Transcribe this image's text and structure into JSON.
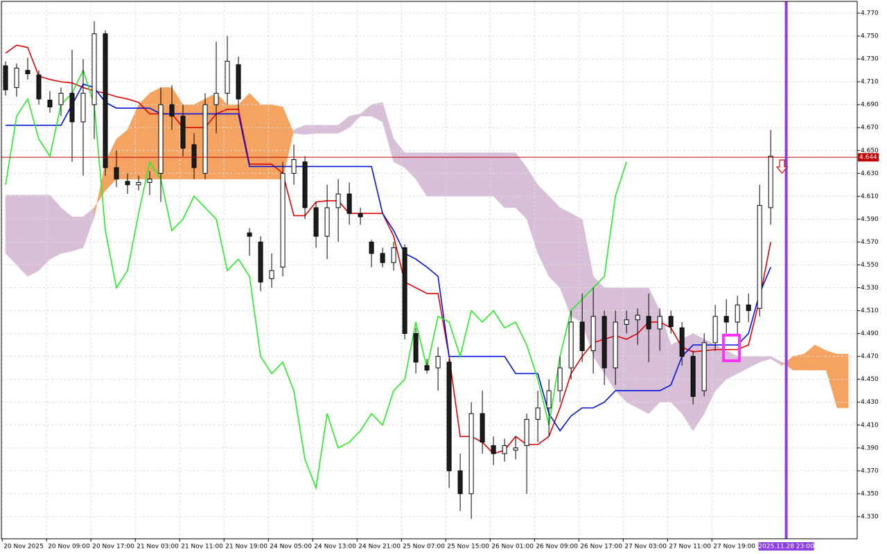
{
  "chart_data": {
    "type": "candlestick",
    "xlim": [
      -0.5,
      76.8
    ],
    "ylim": [
      4.3106,
      4.7803
    ],
    "grid": true,
    "up_color": "#ffffff",
    "down_color": "#1c1c1c",
    "xticks": [
      {
        "value": -0.3,
        "label": "20 Nov 2025"
      },
      {
        "value": 3.7,
        "label": "20 Nov 09:00"
      },
      {
        "value": 7.7,
        "label": "20 Nov 17:00"
      },
      {
        "value": 11.7,
        "label": "21 Nov 03:00"
      },
      {
        "value": 15.7,
        "label": "21 Nov 11:00"
      },
      {
        "value": 19.7,
        "label": "21 Nov 19:00"
      },
      {
        "value": 23.7,
        "label": "24 Nov 05:00"
      },
      {
        "value": 27.7,
        "label": "24 Nov 13:00"
      },
      {
        "value": 31.7,
        "label": "24 Nov 21:00"
      },
      {
        "value": 35.7,
        "label": "25 Nov 07:00"
      },
      {
        "value": 39.7,
        "label": "25 Nov 15:00"
      },
      {
        "value": 43.7,
        "label": "26 Nov 01:00"
      },
      {
        "value": 47.7,
        "label": "26 Nov 09:00"
      },
      {
        "value": 51.7,
        "label": "26 Nov 17:00"
      },
      {
        "value": 55.7,
        "label": "27 Nov 03:00"
      },
      {
        "value": 59.7,
        "label": "27 Nov 11:00"
      },
      {
        "value": 63.7,
        "label": "27 Nov 19:00"
      }
    ],
    "yticks": [
      {
        "value": 4.33,
        "label": "4.330"
      },
      {
        "value": 4.35,
        "label": "4.350"
      },
      {
        "value": 4.37,
        "label": "4.370"
      },
      {
        "value": 4.39,
        "label": "4.390"
      },
      {
        "value": 4.41,
        "label": "4.410"
      },
      {
        "value": 4.43,
        "label": "4.430"
      },
      {
        "value": 4.45,
        "label": "4.450"
      },
      {
        "value": 4.47,
        "label": "4.470"
      },
      {
        "value": 4.49,
        "label": "4.490"
      },
      {
        "value": 4.51,
        "label": "4.510"
      },
      {
        "value": 4.53,
        "label": "4.530"
      },
      {
        "value": 4.55,
        "label": "4.550"
      },
      {
        "value": 4.57,
        "label": "4.570"
      },
      {
        "value": 4.59,
        "label": "4.590"
      },
      {
        "value": 4.61,
        "label": "4.610"
      },
      {
        "value": 4.63,
        "label": "4.630"
      },
      {
        "value": 4.65,
        "label": "4.650"
      },
      {
        "value": 4.67,
        "label": "4.670"
      },
      {
        "value": 4.69,
        "label": "4.690"
      },
      {
        "value": 4.71,
        "label": "4.710"
      },
      {
        "value": 4.73,
        "label": "4.730"
      },
      {
        "value": 4.75,
        "label": "4.750"
      },
      {
        "value": 4.77,
        "label": "4.770"
      }
    ],
    "x": [
      0,
      1,
      2,
      3,
      4,
      5,
      6,
      7,
      8,
      9,
      10,
      11,
      12,
      13,
      14,
      15,
      16,
      17,
      18,
      19,
      20,
      21,
      22,
      23,
      24,
      25,
      26,
      27,
      28,
      29,
      30,
      31,
      32,
      33,
      34,
      35,
      36,
      37,
      38,
      39,
      40,
      41,
      42,
      43,
      44,
      45,
      46,
      47,
      48,
      49,
      50,
      51,
      52,
      53,
      54,
      55,
      56,
      57,
      58,
      59,
      60,
      61,
      62,
      63,
      64,
      65,
      66,
      67,
      68,
      69
    ],
    "open": [
      4.724,
      4.705,
      4.72,
      4.716,
      4.694,
      4.69,
      4.7,
      4.675,
      4.69,
      4.752,
      4.635,
      4.623,
      4.62,
      4.622,
      4.63,
      4.69,
      4.68,
      4.655,
      4.63,
      4.69,
      4.7,
      4.725,
      4.578,
      4.57,
      4.538,
      4.548,
      4.63,
      4.64,
      4.6,
      4.575,
      4.6,
      4.612,
      4.595,
      4.57,
      4.56,
      4.552,
      4.565,
      4.49,
      4.462,
      4.46,
      4.465,
      4.37,
      4.35,
      4.42,
      4.392,
      4.385,
      4.388,
      4.392,
      4.415,
      4.425,
      4.44,
      4.46,
      4.5,
      4.475,
      4.505,
      4.46,
      4.498,
      4.502,
      4.505,
      4.494,
      4.505,
      4.495,
      4.47,
      4.44,
      4.482,
      4.505,
      4.5,
      4.515,
      4.512,
      4.6
    ],
    "high": [
      4.728,
      4.726,
      4.731,
      4.72,
      4.702,
      4.705,
      4.738,
      4.73,
      4.763,
      4.755,
      4.65,
      4.63,
      4.628,
      4.632,
      4.705,
      4.707,
      4.69,
      4.665,
      4.7,
      4.745,
      4.75,
      4.732,
      4.582,
      4.575,
      4.56,
      4.64,
      4.655,
      4.645,
      4.605,
      4.62,
      4.625,
      4.622,
      4.6,
      4.572,
      4.565,
      4.57,
      4.568,
      4.495,
      4.468,
      4.478,
      4.468,
      4.385,
      4.43,
      4.44,
      4.4,
      4.398,
      4.4,
      4.42,
      4.44,
      4.45,
      4.47,
      4.51,
      4.525,
      4.53,
      4.51,
      4.51,
      4.51,
      4.512,
      4.525,
      4.512,
      4.51,
      4.5,
      4.475,
      4.49,
      4.515,
      4.52,
      4.523,
      4.525,
      4.62,
      4.668
    ],
    "low": [
      4.698,
      4.697,
      4.712,
      4.69,
      4.683,
      4.68,
      4.64,
      4.628,
      4.66,
      4.628,
      4.618,
      4.612,
      4.615,
      4.611,
      4.605,
      4.668,
      4.645,
      4.625,
      4.625,
      4.665,
      4.69,
      4.685,
      4.558,
      4.527,
      4.53,
      4.54,
      4.62,
      4.59,
      4.565,
      4.555,
      4.57,
      4.585,
      4.585,
      4.548,
      4.548,
      4.545,
      4.485,
      4.455,
      4.455,
      4.44,
      4.355,
      4.335,
      4.328,
      4.385,
      4.375,
      4.378,
      4.38,
      4.35,
      4.395,
      4.4,
      4.43,
      4.45,
      4.465,
      4.455,
      4.445,
      4.445,
      4.49,
      4.48,
      4.465,
      4.475,
      4.49,
      4.462,
      4.428,
      4.435,
      4.475,
      4.49,
      4.488,
      4.5,
      4.505,
      4.585
    ],
    "close": [
      4.703,
      4.722,
      4.717,
      4.695,
      4.688,
      4.7,
      4.675,
      4.7,
      4.752,
      4.635,
      4.625,
      4.62,
      4.622,
      4.625,
      4.69,
      4.68,
      4.652,
      4.635,
      4.69,
      4.7,
      4.728,
      4.695,
      4.575,
      4.535,
      4.545,
      4.63,
      4.642,
      4.6,
      4.575,
      4.6,
      4.612,
      4.595,
      4.592,
      4.56,
      4.552,
      4.565,
      4.49,
      4.465,
      4.458,
      4.47,
      4.37,
      4.35,
      4.42,
      4.395,
      4.385,
      4.392,
      4.39,
      4.415,
      4.425,
      4.44,
      4.46,
      4.5,
      4.475,
      4.505,
      4.46,
      4.5,
      4.502,
      4.506,
      4.494,
      4.505,
      4.496,
      4.47,
      4.435,
      4.482,
      4.505,
      4.5,
      4.515,
      4.51,
      4.602,
      4.645
    ],
    "lines": [
      {
        "color": "#e00000",
        "values": [
          4.735,
          4.742,
          4.74,
          4.715,
          4.712,
          4.71,
          4.709,
          4.705,
          4.702,
          4.7,
          4.697,
          4.695,
          4.692,
          4.682,
          4.682,
          4.682,
          4.67,
          4.67,
          4.67,
          4.682,
          4.686,
          4.686,
          4.638,
          4.638,
          4.638,
          4.63,
          4.593,
          4.593,
          4.605,
          4.606,
          4.606,
          4.595,
          4.595,
          4.595,
          4.595,
          4.575,
          4.535,
          4.53,
          4.525,
          4.525,
          4.47,
          4.4,
          4.4,
          4.395,
          4.385,
          4.388,
          4.4,
          4.393,
          4.393,
          4.4,
          4.425,
          4.455,
          4.47,
          4.482,
          4.485,
          4.488,
          4.485,
          4.49,
          4.5,
          4.5,
          4.495,
          4.478,
          4.474,
          4.475,
          4.476,
          4.476,
          4.476,
          4.48,
          4.52,
          4.57
        ]
      },
      {
        "color": "#0010e0",
        "values": [
          4.672,
          4.672,
          4.672,
          4.672,
          4.672,
          4.672,
          4.69,
          4.708,
          4.705,
          4.692,
          4.687,
          4.687,
          4.687,
          4.687,
          4.682,
          4.682,
          4.682,
          4.682,
          4.682,
          4.682,
          4.682,
          4.682,
          4.636,
          4.636,
          4.636,
          4.636,
          4.636,
          4.636,
          4.636,
          4.636,
          4.636,
          4.636,
          4.636,
          4.636,
          4.595,
          4.58,
          4.56,
          4.555,
          4.548,
          4.54,
          4.47,
          4.47,
          4.47,
          4.47,
          4.47,
          4.47,
          4.455,
          4.455,
          4.455,
          4.42,
          4.405,
          4.418,
          4.425,
          4.425,
          4.43,
          4.44,
          4.44,
          4.44,
          4.44,
          4.44,
          4.445,
          4.47,
          4.48,
          4.48,
          4.48,
          4.48,
          4.48,
          4.49,
          4.525,
          4.548
        ]
      },
      {
        "color": "#22ee22",
        "values": [
          4.62,
          4.68,
          4.695,
          4.66,
          4.645,
          4.69,
          4.7,
          4.72,
          4.69,
          4.58,
          4.53,
          4.545,
          4.595,
          4.64,
          4.625,
          4.58,
          4.59,
          4.61,
          4.6,
          4.59,
          4.545,
          4.555,
          4.54,
          4.47,
          4.455,
          4.465,
          4.44,
          4.38,
          4.355,
          4.42,
          4.39,
          4.395,
          4.405,
          4.42,
          4.41,
          4.44,
          4.45,
          4.5,
          4.46,
          4.505,
          4.5,
          4.47,
          4.51,
          4.5,
          4.51,
          4.495,
          4.5,
          4.48,
          4.45,
          4.41,
          4.47,
          4.51,
          4.52,
          4.53,
          4.54,
          4.61,
          4.64,
          null,
          null,
          null,
          null,
          null,
          null,
          null,
          null,
          null,
          null,
          null,
          null,
          null
        ]
      }
    ],
    "cloud": {
      "bull_color": "#f4a460",
      "bear_color": "#d8bfd8",
      "x": [
        0,
        1,
        2,
        3,
        4,
        5,
        6,
        7,
        8,
        9,
        10,
        11,
        12,
        13,
        14,
        15,
        16,
        17,
        18,
        19,
        20,
        21,
        22,
        23,
        24,
        25,
        26,
        27,
        28,
        29,
        30,
        31,
        32,
        33,
        34,
        35,
        36,
        37,
        38,
        39,
        40,
        41,
        42,
        43,
        44,
        45,
        46,
        47,
        48,
        49,
        50,
        51,
        52,
        53,
        54,
        55,
        56,
        57,
        58,
        59,
        60,
        61,
        62,
        63,
        64,
        65,
        66,
        67,
        68,
        69,
        70,
        71,
        72,
        73,
        74,
        75,
        76
      ],
      "span_a": [
        4.56,
        4.55,
        4.54,
        4.545,
        4.555,
        4.56,
        4.562,
        4.565,
        4.592,
        4.64,
        4.66,
        4.668,
        4.69,
        4.7,
        4.705,
        4.705,
        4.69,
        4.69,
        4.695,
        4.7,
        4.69,
        4.69,
        4.7,
        4.69,
        4.69,
        4.688,
        4.665,
        4.664,
        4.665,
        4.665,
        4.665,
        4.67,
        4.68,
        4.68,
        4.675,
        4.64,
        4.635,
        4.625,
        4.61,
        4.61,
        4.61,
        4.61,
        4.61,
        4.61,
        4.61,
        4.6,
        4.6,
        4.59,
        4.56,
        4.54,
        4.53,
        4.505,
        4.5,
        4.47,
        4.455,
        4.44,
        4.43,
        4.425,
        4.42,
        4.43,
        4.43,
        4.42,
        4.405,
        4.42,
        4.44,
        4.45,
        4.455,
        4.46,
        4.465,
        4.468,
        4.462,
        4.47,
        4.472,
        4.48,
        4.475,
        4.472,
        4.472
      ],
      "span_b": [
        4.611,
        4.611,
        4.611,
        4.611,
        4.611,
        4.6,
        4.592,
        4.592,
        4.6,
        4.615,
        4.625,
        4.625,
        4.625,
        4.625,
        4.625,
        4.625,
        4.625,
        4.625,
        4.625,
        4.625,
        4.625,
        4.625,
        4.625,
        4.625,
        4.625,
        4.625,
        4.668,
        4.672,
        4.672,
        4.672,
        4.672,
        4.68,
        4.682,
        4.69,
        4.692,
        4.66,
        4.648,
        4.648,
        4.648,
        4.648,
        4.648,
        4.648,
        4.648,
        4.648,
        4.648,
        4.648,
        4.648,
        4.635,
        4.62,
        4.61,
        4.6,
        4.595,
        4.59,
        4.54,
        4.53,
        4.53,
        4.53,
        4.53,
        4.53,
        4.51,
        4.48,
        4.485,
        4.49,
        4.485,
        4.48,
        4.475,
        4.47,
        4.47,
        4.47,
        4.47,
        4.465,
        4.458,
        4.458,
        4.458,
        4.458,
        4.425,
        4.425
      ]
    },
    "price_line": 4.644,
    "price_color": "#c00000",
    "vline": {
      "x": 70.4,
      "label": "2025.11.28 23:00",
      "color": "#8a3ee0"
    }
  }
}
